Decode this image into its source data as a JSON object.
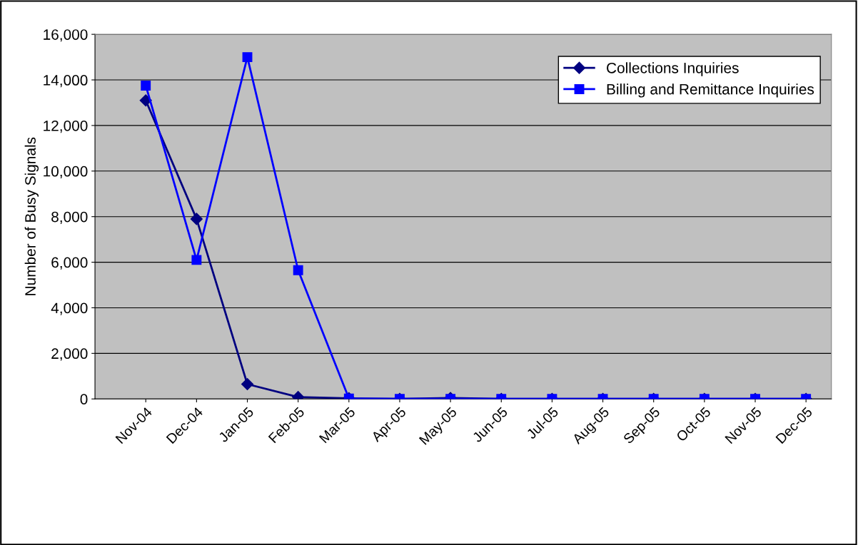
{
  "chart_data": {
    "type": "line",
    "ylabel": "Number of Busy Signals",
    "categories": [
      "Nov-04",
      "Dec-04",
      "Jan-05",
      "Feb-05",
      "Mar-05",
      "Apr-05",
      "May-05",
      "Jun-05",
      "Jul-05",
      "Aug-05",
      "Sep-05",
      "Oct-05",
      "Nov-05",
      "Dec-05"
    ],
    "series": [
      {
        "name": "Collections Inquiries",
        "color": "#000080",
        "marker": "diamond",
        "values": [
          13100,
          7900,
          650,
          80,
          30,
          0,
          40,
          0,
          0,
          0,
          0,
          0,
          0,
          0
        ]
      },
      {
        "name": "Billing and Remittance Inquiries",
        "color": "#0000ff",
        "marker": "square",
        "values": [
          13750,
          6100,
          15000,
          5650,
          20,
          0,
          0,
          0,
          0,
          0,
          0,
          0,
          0,
          0
        ]
      }
    ],
    "ylim": [
      0,
      16000
    ],
    "yticks": [
      {
        "value": 0,
        "label": "0"
      },
      {
        "value": 2000,
        "label": "2,000"
      },
      {
        "value": 4000,
        "label": "4,000"
      },
      {
        "value": 6000,
        "label": "6,000"
      },
      {
        "value": 8000,
        "label": "8,000"
      },
      {
        "value": 10000,
        "label": "10,000"
      },
      {
        "value": 12000,
        "label": "12,000"
      },
      {
        "value": 14000,
        "label": "14,000"
      },
      {
        "value": 16000,
        "label": "16,000"
      }
    ],
    "grid": "y",
    "legend": "top right",
    "line_style": "solid"
  }
}
